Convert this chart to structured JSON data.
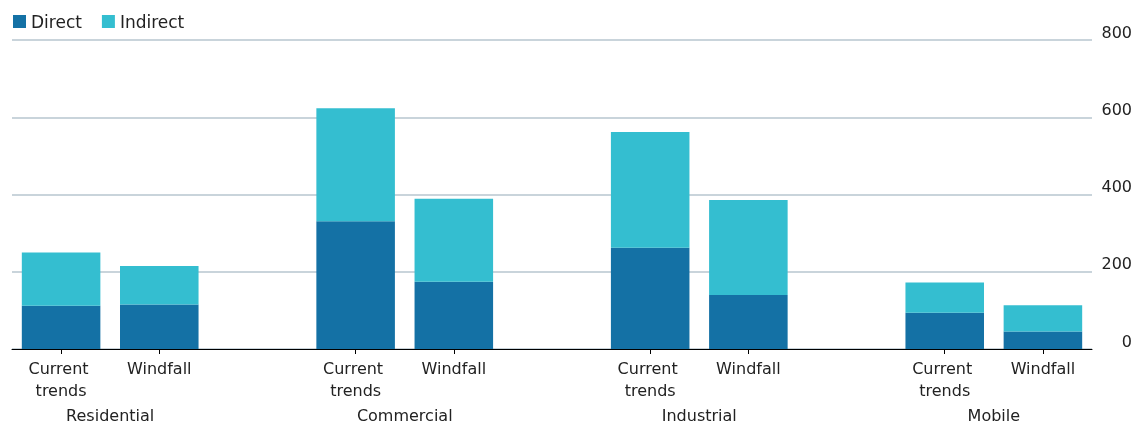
{
  "chart_data": {
    "type": "bar",
    "stacked": true,
    "categories": [
      "Current trends",
      "Windfall",
      null,
      "Current trends",
      "Windfall",
      null,
      "Current trends",
      "Windfall",
      null,
      "Current trends",
      "Windfall"
    ],
    "series": [
      {
        "name": "Direct",
        "color": "#1471a5",
        "values": [
          112,
          115,
          null,
          331,
          174,
          null,
          262,
          140,
          null,
          94,
          45
        ]
      },
      {
        "name": "Indirect",
        "color": "#34bed0",
        "values": [
          138,
          100,
          null,
          292,
          215,
          null,
          300,
          246,
          null,
          78,
          68
        ]
      }
    ],
    "annotations": [
      "Residential",
      "Commercial",
      "Industrial",
      "Mobile"
    ],
    "ylim": [
      0,
      800
    ],
    "yticks": [
      0,
      200,
      400,
      600,
      800
    ],
    "grid": "y",
    "legend": "top left"
  }
}
